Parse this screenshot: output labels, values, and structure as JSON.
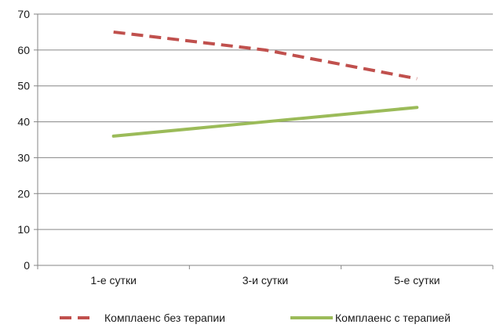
{
  "chart_data": {
    "type": "line",
    "categories": [
      "1-е сутки",
      "3-и сутки",
      "5-е сутки"
    ],
    "series": [
      {
        "name": "Комплаенс без терапии",
        "values": [
          65,
          60,
          52
        ],
        "color": "#c0504d",
        "dash": true
      },
      {
        "name": "Комплаенс с терапией",
        "values": [
          36,
          40,
          44
        ],
        "color": "#9bbb59",
        "dash": false
      }
    ],
    "ylim": [
      0,
      70
    ],
    "yticks": [
      "0",
      "10",
      "20",
      "30",
      "40",
      "50",
      "60",
      "70"
    ],
    "grid": true,
    "legend": "bottom"
  }
}
